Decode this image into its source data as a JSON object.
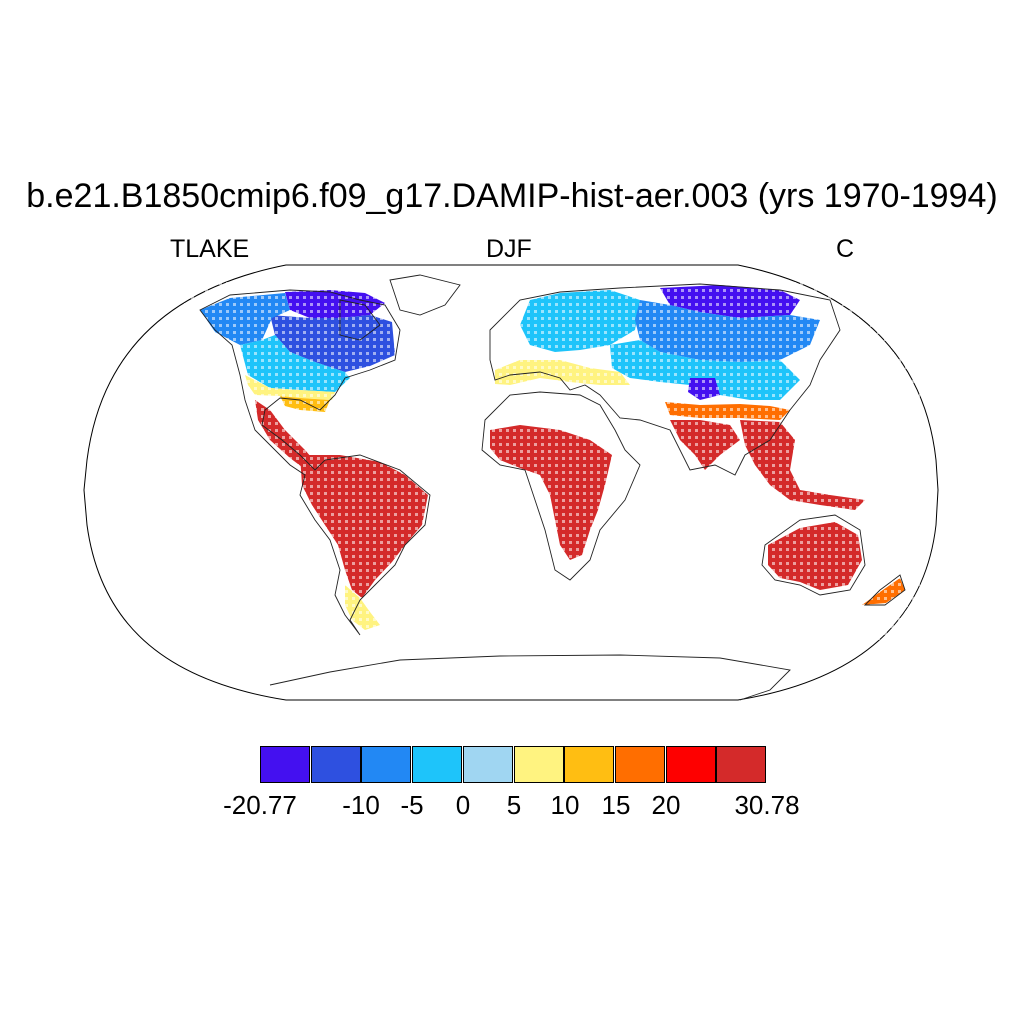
{
  "title": "b.e21.B1850cmip6.f09_g17.DAMIP-hist-aer.003 (yrs 1970-1994)",
  "subtitle_left": "TLAKE",
  "subtitle_center": "DJF",
  "subtitle_right": "C",
  "projection": "robinson",
  "colorbar": {
    "colors": [
      "#4410f0",
      "#2e50e0",
      "#2288f4",
      "#1ec4fa",
      "#a0d6f2",
      "#fff380",
      "#ffbe12",
      "#ff6e00",
      "#fe0000",
      "#d42a2a"
    ],
    "labels": [
      "-20.77",
      "-10",
      "-5",
      "0",
      "5",
      "10",
      "15",
      "20",
      "30.78"
    ]
  },
  "map_regions": [
    {
      "name": "north-america-arctic",
      "color": "#4410f0"
    },
    {
      "name": "canada",
      "color": "#2e50e0"
    },
    {
      "name": "north-america-north",
      "color": "#2288f4"
    },
    {
      "name": "north-america-mid",
      "color": "#1ec4fa"
    },
    {
      "name": "us-south",
      "color": "#fff380"
    },
    {
      "name": "gulf-coast",
      "color": "#ffbe12"
    },
    {
      "name": "central-america",
      "color": "#d42a2a"
    },
    {
      "name": "south-america",
      "color": "#d42a2a"
    },
    {
      "name": "patagonia",
      "color": "#fff380"
    },
    {
      "name": "europe",
      "color": "#1ec4fa"
    },
    {
      "name": "mediterranean",
      "color": "#fff380"
    },
    {
      "name": "siberia",
      "color": "#4410f0"
    },
    {
      "name": "russia",
      "color": "#2288f4"
    },
    {
      "name": "central-asia",
      "color": "#1ec4fa"
    },
    {
      "name": "tibet",
      "color": "#4410f0"
    },
    {
      "name": "south-asia-north",
      "color": "#ff6e00"
    },
    {
      "name": "africa",
      "color": "#d42a2a"
    },
    {
      "name": "south-asia",
      "color": "#d42a2a"
    },
    {
      "name": "southeast-asia",
      "color": "#d42a2a"
    },
    {
      "name": "australia",
      "color": "#d42a2a"
    },
    {
      "name": "new-zealand",
      "color": "#ff6e00"
    }
  ]
}
